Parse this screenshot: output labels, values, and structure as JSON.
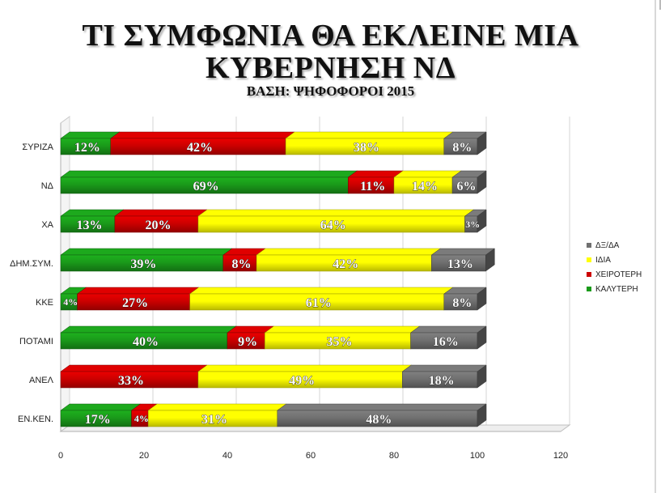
{
  "header": {
    "title_line1": "ΤΙ ΣΥΜΦΩΝΙΑ ΘΑ ΕΚΛΕΙΝΕ ΜΙΑ",
    "title_line2": "ΚΥΒΕΡΝΗΣΗ ΝΔ",
    "subtitle": "ΒΑΣΗ: ΨΗΦΟΦΟΡΟΙ 2015"
  },
  "chart_data": {
    "type": "bar",
    "orientation": "horizontal",
    "stacked": true,
    "categories": [
      "ΣΥΡΙΖΑ",
      "ΝΔ",
      "ΧΑ",
      "ΔΗΜ.ΣΥΜ.",
      "ΚΚΕ",
      "ΠΟΤΑΜΙ",
      "ΑΝΕΛ",
      "ΕΝ.ΚΕΝ."
    ],
    "series": [
      {
        "name": "ΚΑΛΥΤΕΡΗ",
        "color": "#1a9a1a",
        "label_color": "#ffffff",
        "values": [
          12,
          69,
          13,
          39,
          4,
          40,
          0,
          17
        ]
      },
      {
        "name": "ΧΕΙΡΟΤΕΡΗ",
        "color": "#cc0000",
        "label_color": "#ffffff",
        "values": [
          42,
          11,
          20,
          8,
          27,
          9,
          33,
          4
        ]
      },
      {
        "name": "ΙΔΙΑ",
        "color": "#ffff00",
        "label_color": "#ffffff",
        "values": [
          38,
          14,
          64,
          42,
          61,
          35,
          49,
          31
        ]
      },
      {
        "name": "ΔΞ/ΔΑ",
        "color": "#707070",
        "label_color": "#ffffff",
        "values": [
          8,
          6,
          3,
          13,
          8,
          16,
          18,
          48
        ]
      }
    ],
    "xlim": [
      0,
      120
    ],
    "xticks": [
      "0",
      "20",
      "40",
      "60",
      "80",
      "100",
      "120"
    ],
    "data_label_suffix": "%",
    "legend_position": "right",
    "legend_order": [
      "ΔΞ/ΔΑ",
      "ΙΔΙΑ",
      "ΧΕΙΡΟΤΕΡΗ",
      "ΚΑΛΥΤΕΡΗ"
    ],
    "grid": true
  }
}
